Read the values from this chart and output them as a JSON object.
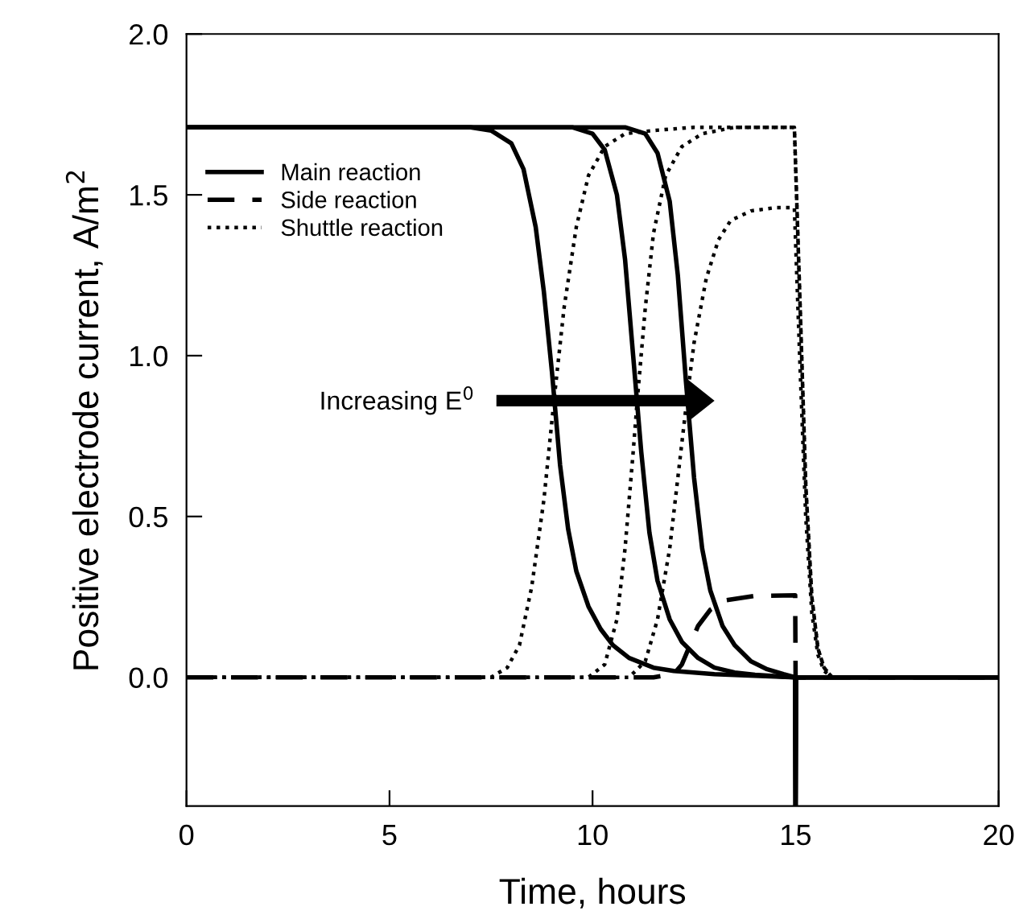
{
  "chart_data": {
    "type": "line",
    "xlabel": "Time, hours",
    "ylabel": "Positive electrode current, A/m$^{2}$",
    "xlim": [
      0,
      20
    ],
    "ylim": [
      -0.4,
      2.0
    ],
    "xticks": [
      0,
      5,
      10,
      15,
      20
    ],
    "yticks": [
      {
        "value": 0,
        "label": "0.0"
      },
      {
        "value": 0.5,
        "label": "0.5"
      },
      {
        "value": 1.0,
        "label": "1.0"
      },
      {
        "value": 1.5,
        "label": "1.5"
      },
      {
        "value": 2.0,
        "label": "2.0"
      }
    ],
    "grid": false,
    "legend": "top left",
    "marker": "none",
    "annotations": [
      "Increasing E$^{0}$"
    ],
    "series": [
      {
        "name": "Main reaction",
        "color": "#000000",
        "line_style": "solid",
        "x": [
          0,
          7,
          7.5,
          8,
          8.3,
          8.6,
          8.8,
          9.0,
          9.2,
          9.4,
          9.6,
          9.9,
          10.2,
          10.5,
          10.9,
          11.5,
          12,
          13,
          14,
          14.99,
          15,
          15.01,
          20
        ],
        "values": [
          1.71,
          1.71,
          1.7,
          1.66,
          1.58,
          1.4,
          1.2,
          0.95,
          0.66,
          0.46,
          0.33,
          0.22,
          0.15,
          0.1,
          0.06,
          0.03,
          0.02,
          0.01,
          0.005,
          0,
          -0.4,
          0,
          0
        ]
      },
      {
        "color": "#000000",
        "line_style": "solid",
        "x": [
          0,
          9.5,
          10,
          10.3,
          10.6,
          10.8,
          11.0,
          11.2,
          11.4,
          11.6,
          11.9,
          12.2,
          12.6,
          13,
          13.5,
          14,
          14.99,
          15,
          15.01,
          20
        ],
        "values": [
          1.71,
          1.71,
          1.69,
          1.64,
          1.5,
          1.3,
          1.0,
          0.7,
          0.45,
          0.3,
          0.18,
          0.11,
          0.06,
          0.03,
          0.015,
          0.008,
          0,
          -0.4,
          0,
          0
        ]
      },
      {
        "color": "#000000",
        "line_style": "solid",
        "x": [
          0,
          10.8,
          11.3,
          11.6,
          11.9,
          12.1,
          12.3,
          12.5,
          12.7,
          12.9,
          13.2,
          13.5,
          13.9,
          14.3,
          14.7,
          14.99,
          15,
          15.01,
          20
        ],
        "values": [
          1.71,
          1.71,
          1.69,
          1.63,
          1.48,
          1.25,
          0.92,
          0.62,
          0.4,
          0.27,
          0.16,
          0.1,
          0.05,
          0.025,
          0.01,
          0,
          -0.4,
          0,
          0
        ]
      },
      {
        "name": "Side reaction",
        "color": "#000000",
        "line_style": "dashed",
        "x": [
          0,
          11.5,
          12,
          12.2,
          12.4,
          12.6,
          12.9,
          13.3,
          14,
          14.99,
          15,
          20
        ],
        "values": [
          0,
          0,
          0.01,
          0.04,
          0.1,
          0.16,
          0.21,
          0.24,
          0.253,
          0.255,
          0,
          0
        ]
      },
      {
        "name": "Shuttle reaction",
        "color": "#000000",
        "line_style": "dotted",
        "x": [
          0,
          7.5,
          7.9,
          8.2,
          8.5,
          8.8,
          9.05,
          9.3,
          9.6,
          9.9,
          10.3,
          10.8,
          11.5,
          12.5,
          14.97,
          15.1,
          15.25,
          15.4,
          15.55,
          15.7,
          15.9,
          20
        ],
        "values": [
          0,
          0,
          0.03,
          0.1,
          0.28,
          0.55,
          0.86,
          1.15,
          1.4,
          1.56,
          1.65,
          1.69,
          1.7,
          1.71,
          1.71,
          1.2,
          0.6,
          0.25,
          0.09,
          0.03,
          0,
          0
        ]
      },
      {
        "color": "#000000",
        "line_style": "dotted",
        "x": [
          0,
          9.9,
          10.3,
          10.6,
          10.8,
          11.0,
          11.1,
          11.3,
          11.5,
          11.8,
          12.2,
          12.7,
          13.5,
          14.97,
          15.1,
          15.25,
          15.4,
          15.55,
          15.7,
          15.9,
          20
        ],
        "values": [
          0,
          0,
          0.04,
          0.18,
          0.4,
          0.7,
          0.86,
          1.15,
          1.38,
          1.56,
          1.65,
          1.69,
          1.71,
          1.71,
          1.2,
          0.6,
          0.25,
          0.09,
          0.03,
          0,
          0
        ]
      },
      {
        "color": "#000000",
        "line_style": "dotted",
        "x": [
          0,
          10.9,
          11.3,
          11.6,
          11.9,
          12.1,
          12.32,
          12.5,
          12.8,
          13.1,
          13.4,
          13.9,
          14.5,
          14.97,
          15.1,
          15.25,
          15.4,
          15.55,
          15.7,
          15.9,
          20
        ],
        "values": [
          0,
          0,
          0.05,
          0.18,
          0.4,
          0.62,
          0.86,
          1.04,
          1.24,
          1.36,
          1.42,
          1.45,
          1.46,
          1.46,
          1.0,
          0.5,
          0.2,
          0.07,
          0.02,
          0,
          0
        ]
      }
    ]
  }
}
